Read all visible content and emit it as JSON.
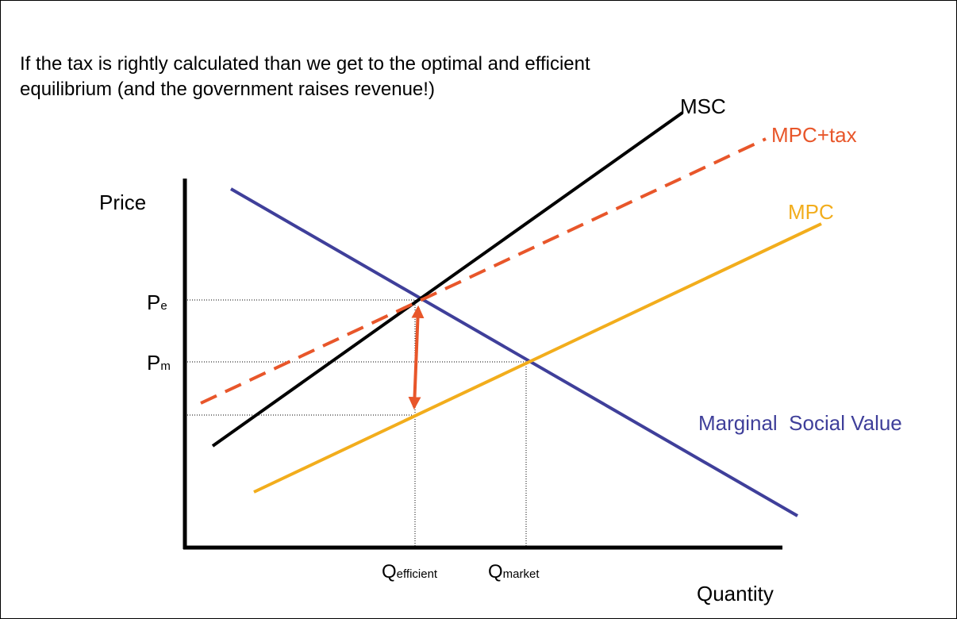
{
  "header": {
    "lines": [
      "If the tax is rightly calculated than we get to the optimal and efficient",
      "equilibrium (and the government raises revenue!)"
    ]
  },
  "labels": {
    "msc": "MSC",
    "mpc_tax": "MPC+tax",
    "mpc": "MPC",
    "msv": "Marginal  Social Value",
    "y_axis": "Price",
    "x_axis": "Quantity",
    "pe": {
      "main": "P",
      "sub": "e"
    },
    "pm": {
      "main": "P",
      "sub": "m"
    },
    "q_efficient": {
      "main": "Q",
      "sub": "efficient"
    },
    "q_market": {
      "main": "Q",
      "sub": "market"
    }
  }
}
